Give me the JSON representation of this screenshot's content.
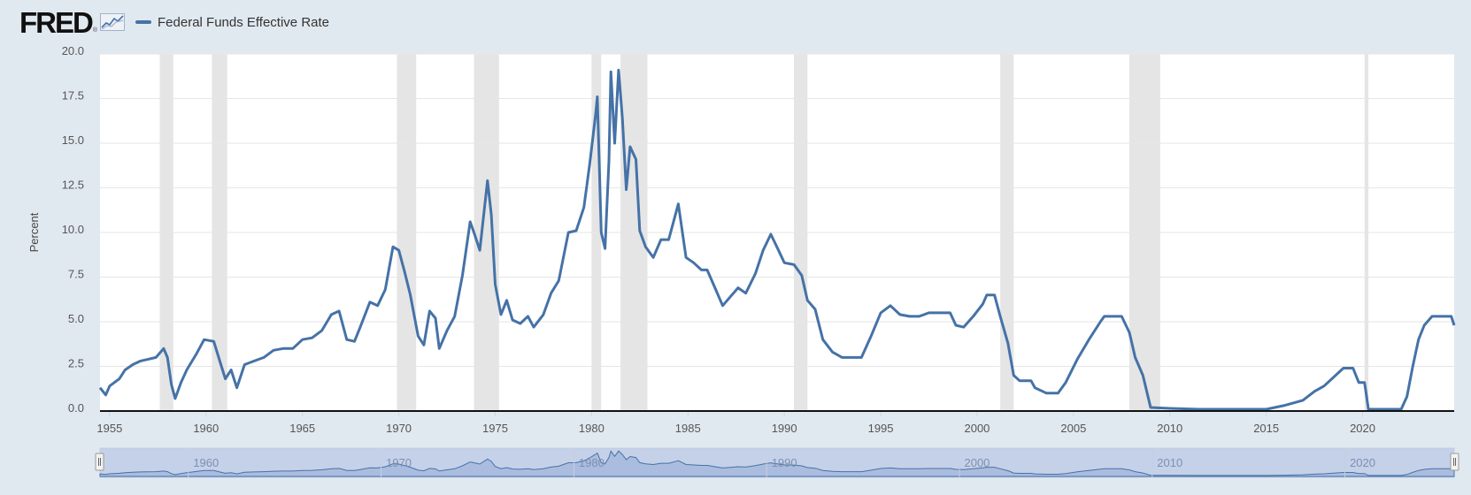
{
  "header": {
    "logo_text": "FRED",
    "logo_mark": "®",
    "logo_icon": "mini-chart-icon"
  },
  "colors": {
    "line": "#4572a7",
    "recession": "#e5e5e5",
    "background": "#e1e9f0",
    "plot": "#ffffff",
    "navigator_fill": "#b9c8e6",
    "navigator_line": "#4572a7"
  },
  "chart_data": {
    "type": "line",
    "title": "",
    "xlabel": "",
    "ylabel": "Percent",
    "xlim": [
      1954.5,
      2024.75
    ],
    "ylim": [
      0,
      20
    ],
    "grid": "horizontal",
    "legend_position": "top-left",
    "x_ticks": [
      "1955",
      "1960",
      "1965",
      "1970",
      "1975",
      "1980",
      "1985",
      "1990",
      "1995",
      "2000",
      "2005",
      "2010",
      "2015",
      "2020"
    ],
    "y_ticks": [
      "0.0",
      "2.5",
      "5.0",
      "7.5",
      "10.0",
      "12.5",
      "15.0",
      "17.5",
      "20.0"
    ],
    "navigator_ticks": [
      "1960",
      "1970",
      "1980",
      "1990",
      "2000",
      "2010",
      "2020"
    ],
    "recessions": [
      [
        1957.6,
        1958.3
      ],
      [
        1960.3,
        1961.1
      ],
      [
        1969.9,
        1970.9
      ],
      [
        1973.9,
        1975.2
      ],
      [
        1980.0,
        1980.5
      ],
      [
        1981.5,
        1982.9
      ],
      [
        1990.5,
        1991.2
      ],
      [
        2001.2,
        2001.9
      ],
      [
        2007.9,
        2009.5
      ],
      [
        2020.1,
        2020.3
      ]
    ],
    "series": [
      {
        "name": "Federal Funds Effective Rate",
        "points": [
          [
            1954.5,
            1.3
          ],
          [
            1954.8,
            0.9
          ],
          [
            1955.0,
            1.4
          ],
          [
            1955.5,
            1.8
          ],
          [
            1955.8,
            2.3
          ],
          [
            1956.2,
            2.6
          ],
          [
            1956.6,
            2.8
          ],
          [
            1957.0,
            2.9
          ],
          [
            1957.4,
            3.0
          ],
          [
            1957.8,
            3.5
          ],
          [
            1958.0,
            3.0
          ],
          [
            1958.2,
            1.5
          ],
          [
            1958.4,
            0.7
          ],
          [
            1958.7,
            1.6
          ],
          [
            1959.0,
            2.3
          ],
          [
            1959.5,
            3.2
          ],
          [
            1959.9,
            4.0
          ],
          [
            1960.4,
            3.9
          ],
          [
            1960.8,
            2.5
          ],
          [
            1961.0,
            1.8
          ],
          [
            1961.3,
            2.3
          ],
          [
            1961.6,
            1.3
          ],
          [
            1962.0,
            2.6
          ],
          [
            1962.5,
            2.8
          ],
          [
            1963.0,
            3.0
          ],
          [
            1963.5,
            3.4
          ],
          [
            1964.0,
            3.5
          ],
          [
            1964.5,
            3.5
          ],
          [
            1965.0,
            4.0
          ],
          [
            1965.5,
            4.1
          ],
          [
            1966.0,
            4.5
          ],
          [
            1966.5,
            5.4
          ],
          [
            1966.9,
            5.6
          ],
          [
            1967.3,
            4.0
          ],
          [
            1967.7,
            3.9
          ],
          [
            1968.0,
            4.7
          ],
          [
            1968.5,
            6.1
          ],
          [
            1968.9,
            5.9
          ],
          [
            1969.3,
            6.8
          ],
          [
            1969.7,
            9.2
          ],
          [
            1970.0,
            9.0
          ],
          [
            1970.3,
            7.8
          ],
          [
            1970.6,
            6.5
          ],
          [
            1971.0,
            4.2
          ],
          [
            1971.3,
            3.7
          ],
          [
            1971.6,
            5.6
          ],
          [
            1971.9,
            5.2
          ],
          [
            1972.1,
            3.5
          ],
          [
            1972.5,
            4.5
          ],
          [
            1972.9,
            5.3
          ],
          [
            1973.3,
            7.6
          ],
          [
            1973.7,
            10.6
          ],
          [
            1973.9,
            10.0
          ],
          [
            1974.2,
            9.0
          ],
          [
            1974.6,
            12.9
          ],
          [
            1974.8,
            11.0
          ],
          [
            1975.0,
            7.1
          ],
          [
            1975.3,
            5.4
          ],
          [
            1975.6,
            6.2
          ],
          [
            1975.9,
            5.1
          ],
          [
            1976.3,
            4.9
          ],
          [
            1976.7,
            5.3
          ],
          [
            1977.0,
            4.7
          ],
          [
            1977.5,
            5.4
          ],
          [
            1977.9,
            6.6
          ],
          [
            1978.3,
            7.3
          ],
          [
            1978.8,
            10.0
          ],
          [
            1979.2,
            10.1
          ],
          [
            1979.6,
            11.4
          ],
          [
            1979.9,
            13.8
          ],
          [
            1980.2,
            16.5
          ],
          [
            1980.3,
            17.6
          ],
          [
            1980.5,
            10.0
          ],
          [
            1980.7,
            9.1
          ],
          [
            1980.9,
            14.0
          ],
          [
            1981.0,
            19.0
          ],
          [
            1981.2,
            15.0
          ],
          [
            1981.4,
            19.1
          ],
          [
            1981.6,
            16.4
          ],
          [
            1981.8,
            12.4
          ],
          [
            1982.0,
            14.8
          ],
          [
            1982.3,
            14.1
          ],
          [
            1982.5,
            10.1
          ],
          [
            1982.8,
            9.2
          ],
          [
            1983.2,
            8.6
          ],
          [
            1983.6,
            9.6
          ],
          [
            1984.0,
            9.6
          ],
          [
            1984.5,
            11.6
          ],
          [
            1984.9,
            8.6
          ],
          [
            1985.3,
            8.3
          ],
          [
            1985.7,
            7.9
          ],
          [
            1986.0,
            7.9
          ],
          [
            1986.4,
            6.9
          ],
          [
            1986.8,
            5.9
          ],
          [
            1987.2,
            6.4
          ],
          [
            1987.6,
            6.9
          ],
          [
            1988.0,
            6.6
          ],
          [
            1988.5,
            7.7
          ],
          [
            1988.9,
            9.0
          ],
          [
            1989.3,
            9.9
          ],
          [
            1989.7,
            9.0
          ],
          [
            1990.0,
            8.3
          ],
          [
            1990.5,
            8.2
          ],
          [
            1990.9,
            7.6
          ],
          [
            1991.2,
            6.2
          ],
          [
            1991.6,
            5.7
          ],
          [
            1992.0,
            4.0
          ],
          [
            1992.5,
            3.3
          ],
          [
            1993.0,
            3.0
          ],
          [
            1993.5,
            3.0
          ],
          [
            1994.0,
            3.0
          ],
          [
            1994.5,
            4.2
          ],
          [
            1995.0,
            5.5
          ],
          [
            1995.5,
            5.9
          ],
          [
            1996.0,
            5.4
          ],
          [
            1996.5,
            5.3
          ],
          [
            1997.0,
            5.3
          ],
          [
            1997.5,
            5.5
          ],
          [
            1998.0,
            5.5
          ],
          [
            1998.6,
            5.5
          ],
          [
            1998.9,
            4.8
          ],
          [
            1999.3,
            4.7
          ],
          [
            1999.8,
            5.3
          ],
          [
            2000.3,
            6.0
          ],
          [
            2000.5,
            6.5
          ],
          [
            2000.9,
            6.5
          ],
          [
            2001.2,
            5.3
          ],
          [
            2001.6,
            3.8
          ],
          [
            2001.9,
            2.0
          ],
          [
            2002.2,
            1.7
          ],
          [
            2002.8,
            1.7
          ],
          [
            2003.0,
            1.3
          ],
          [
            2003.6,
            1.0
          ],
          [
            2004.2,
            1.0
          ],
          [
            2004.6,
            1.6
          ],
          [
            2005.2,
            2.9
          ],
          [
            2005.8,
            4.0
          ],
          [
            2006.4,
            5.0
          ],
          [
            2006.6,
            5.3
          ],
          [
            2007.5,
            5.3
          ],
          [
            2007.9,
            4.4
          ],
          [
            2008.2,
            3.0
          ],
          [
            2008.6,
            2.0
          ],
          [
            2009.0,
            0.2
          ],
          [
            2010.0,
            0.15
          ],
          [
            2011.5,
            0.1
          ],
          [
            2013.0,
            0.1
          ],
          [
            2015.0,
            0.1
          ],
          [
            2015.9,
            0.3
          ],
          [
            2016.9,
            0.6
          ],
          [
            2017.5,
            1.1
          ],
          [
            2018.0,
            1.4
          ],
          [
            2018.5,
            1.9
          ],
          [
            2019.0,
            2.4
          ],
          [
            2019.5,
            2.4
          ],
          [
            2019.8,
            1.6
          ],
          [
            2020.1,
            1.6
          ],
          [
            2020.3,
            0.1
          ],
          [
            2021.5,
            0.1
          ],
          [
            2022.0,
            0.1
          ],
          [
            2022.3,
            0.8
          ],
          [
            2022.6,
            2.5
          ],
          [
            2022.9,
            4.0
          ],
          [
            2023.2,
            4.8
          ],
          [
            2023.6,
            5.3
          ],
          [
            2024.6,
            5.3
          ],
          [
            2024.75,
            4.8
          ]
        ]
      }
    ]
  }
}
